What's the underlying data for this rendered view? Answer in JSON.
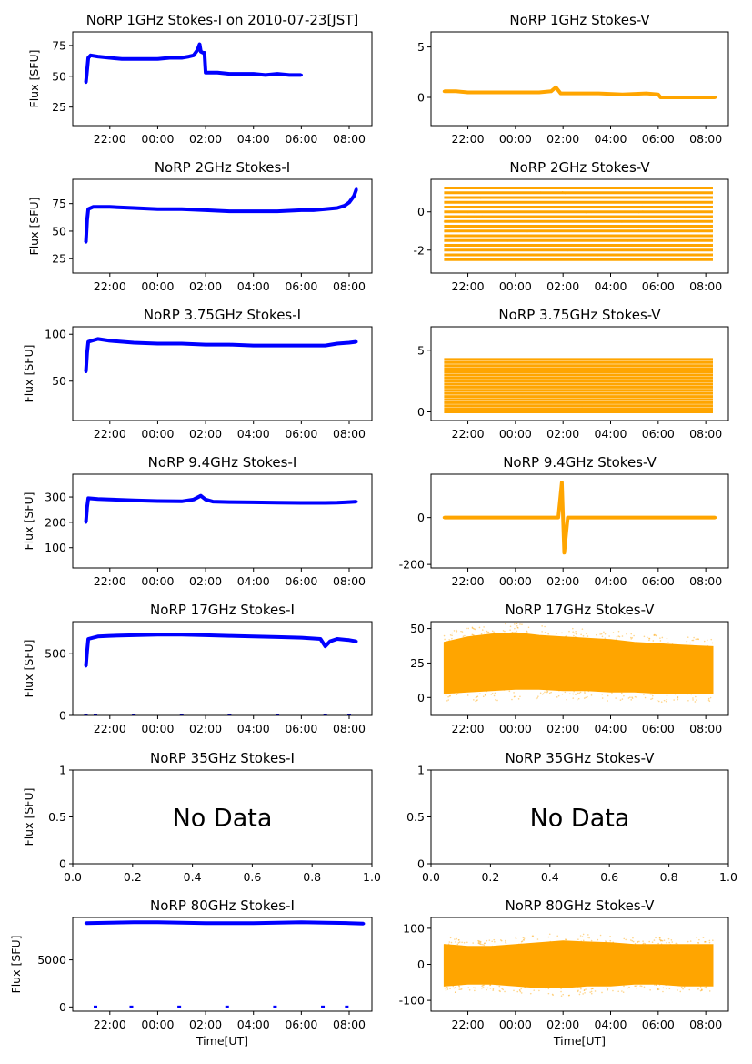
{
  "figure": {
    "time_label": "Time[UT]",
    "flux_label": "Flux [SFU]",
    "no_data_text": "No Data",
    "x_ticks": [
      "22:00",
      "00:00",
      "02:00",
      "04:00",
      "06:00",
      "08:00"
    ],
    "x_tick_hours": [
      22,
      24,
      26,
      28,
      30,
      32
    ],
    "colors": {
      "stokes_i": "#0000ff",
      "stokes_v": "#ffa500"
    }
  },
  "chart_data": [
    {
      "type": "scatter",
      "title": "NoRP 1GHz Stokes-I on 2010-07-23[JST]",
      "ylabel": "Flux [SFU]",
      "xlabel": "",
      "xlim": [
        20.45,
        32.95
      ],
      "ylim": [
        10,
        86
      ],
      "y_ticks": [
        25,
        50,
        75
      ],
      "x_ticks": [
        "22:00",
        "00:00",
        "02:00",
        "04:00",
        "06:00",
        "08:00"
      ],
      "series_color": "#0000ff",
      "series": [
        {
          "x": [
            21.0,
            21.05,
            21.1,
            21.2,
            21.5,
            22.0,
            22.5,
            23.0,
            23.5,
            24.0,
            24.5,
            25.0,
            25.3,
            25.5,
            25.65,
            25.75,
            25.8,
            25.9,
            25.95,
            26.0,
            26.1,
            26.5,
            27.0,
            27.5,
            28.0,
            28.5,
            29.0,
            29.5,
            30.0
          ],
          "y": [
            45,
            55,
            65,
            67,
            66,
            65,
            64,
            64,
            64,
            64,
            65,
            65,
            66,
            67,
            71,
            76,
            70,
            69,
            69,
            53,
            53,
            53,
            52,
            52,
            52,
            51,
            52,
            51,
            51
          ]
        }
      ]
    },
    {
      "type": "scatter",
      "title": "NoRP 1GHz Stokes-V",
      "ylabel": "",
      "xlabel": "",
      "xlim": [
        20.45,
        32.95
      ],
      "ylim": [
        -2.8,
        6.5
      ],
      "y_ticks": [
        0,
        5
      ],
      "x_ticks": [
        "22:00",
        "00:00",
        "02:00",
        "04:00",
        "06:00",
        "08:00"
      ],
      "series_color": "#ffa500",
      "series": [
        {
          "x": [
            21.0,
            21.5,
            22.0,
            23.0,
            24.0,
            25.0,
            25.5,
            25.7,
            25.9,
            26.5,
            27.5,
            28.5,
            29.5,
            30.0,
            30.1,
            31.0,
            32.0,
            32.4
          ],
          "y": [
            0.6,
            0.6,
            0.5,
            0.5,
            0.5,
            0.5,
            0.6,
            1.0,
            0.4,
            0.4,
            0.4,
            0.3,
            0.4,
            0.3,
            0.0,
            0.0,
            0.0,
            0.0
          ]
        }
      ]
    },
    {
      "type": "scatter",
      "title": "NoRP 2GHz Stokes-I",
      "ylabel": "Flux [SFU]",
      "xlabel": "",
      "xlim": [
        20.45,
        32.95
      ],
      "ylim": [
        12,
        97
      ],
      "y_ticks": [
        25,
        50,
        75
      ],
      "x_ticks": [
        "22:00",
        "00:00",
        "02:00",
        "04:00",
        "06:00",
        "08:00"
      ],
      "series_color": "#0000ff",
      "series": [
        {
          "x": [
            21.0,
            21.05,
            21.1,
            21.3,
            22.0,
            23.0,
            24.0,
            25.0,
            26.0,
            27.0,
            28.0,
            29.0,
            30.0,
            30.5,
            31.0,
            31.5,
            31.8,
            32.0,
            32.2,
            32.3
          ],
          "y": [
            40,
            60,
            70,
            72,
            72,
            71,
            70,
            70,
            69,
            68,
            68,
            68,
            69,
            69,
            70,
            71,
            73,
            76,
            82,
            88
          ]
        }
      ]
    },
    {
      "type": "scatter",
      "title": "NoRP 2GHz Stokes-V",
      "ylabel": "",
      "xlabel": "",
      "xlim": [
        20.45,
        32.95
      ],
      "ylim": [
        -3.2,
        1.7
      ],
      "y_ticks": [
        -2,
        0
      ],
      "x_ticks": [
        "22:00",
        "00:00",
        "02:00",
        "04:00",
        "06:00",
        "08:00"
      ],
      "series_color": "#ffa500",
      "levels": [
        1.25,
        1.0,
        0.75,
        0.5,
        0.25,
        0.0,
        -0.25,
        -0.5,
        -0.75,
        -1.0,
        -1.25,
        -1.5,
        -1.75,
        -2.0,
        -2.25,
        -2.5
      ],
      "x_range": [
        21.0,
        32.3
      ]
    },
    {
      "type": "scatter",
      "title": "NoRP 3.75GHz Stokes-I",
      "ylabel": "Flux [SFU]",
      "xlabel": "",
      "xlim": [
        20.45,
        32.95
      ],
      "ylim": [
        8,
        108
      ],
      "y_ticks": [
        50,
        100
      ],
      "x_ticks": [
        "22:00",
        "00:00",
        "02:00",
        "04:00",
        "06:00",
        "08:00"
      ],
      "series_color": "#0000ff",
      "series": [
        {
          "x": [
            21.0,
            21.05,
            21.1,
            21.5,
            22.0,
            23.0,
            24.0,
            25.0,
            26.0,
            27.0,
            28.0,
            29.0,
            30.0,
            31.0,
            31.5,
            32.0,
            32.3
          ],
          "y": [
            60,
            80,
            92,
            95,
            93,
            91,
            90,
            90,
            89,
            89,
            88,
            88,
            88,
            88,
            90,
            91,
            92
          ]
        }
      ]
    },
    {
      "type": "scatter",
      "title": "NoRP 3.75GHz Stokes-V",
      "ylabel": "",
      "xlabel": "",
      "xlim": [
        20.45,
        32.95
      ],
      "ylim": [
        -0.7,
        6.9
      ],
      "y_ticks": [
        0,
        5
      ],
      "x_ticks": [
        "22:00",
        "00:00",
        "02:00",
        "04:00",
        "06:00",
        "08:00"
      ],
      "series_color": "#ffa500",
      "levels": [
        4.25,
        4.0,
        3.75,
        3.5,
        3.25,
        3.0,
        2.75,
        2.5,
        2.25,
        2.0,
        1.75,
        1.5,
        1.25,
        1.0,
        0.75,
        0.5,
        0.25,
        0.0
      ],
      "x_range": [
        21.0,
        32.3
      ]
    },
    {
      "type": "scatter",
      "title": "NoRP 9.4GHz Stokes-I",
      "ylabel": "Flux [SFU]",
      "xlabel": "",
      "xlim": [
        20.45,
        32.95
      ],
      "ylim": [
        20,
        390
      ],
      "y_ticks": [
        100,
        200,
        300
      ],
      "x_ticks": [
        "22:00",
        "00:00",
        "02:00",
        "04:00",
        "06:00",
        "08:00"
      ],
      "series_color": "#0000ff",
      "series": [
        {
          "x": [
            21.0,
            21.05,
            21.1,
            21.5,
            22.0,
            23.0,
            24.0,
            25.0,
            25.5,
            25.8,
            26.0,
            26.3,
            27.0,
            28.0,
            29.0,
            30.0,
            31.0,
            31.5,
            32.0,
            32.3
          ],
          "y": [
            200,
            260,
            295,
            292,
            290,
            287,
            284,
            283,
            290,
            305,
            290,
            282,
            280,
            279,
            278,
            277,
            277,
            278,
            280,
            282
          ]
        }
      ]
    },
    {
      "type": "scatter",
      "title": "NoRP 9.4GHz Stokes-V",
      "ylabel": "",
      "xlabel": "",
      "xlim": [
        20.45,
        32.95
      ],
      "ylim": [
        -215,
        185
      ],
      "y_ticks": [
        -200,
        0
      ],
      "x_ticks": [
        "22:00",
        "00:00",
        "02:00",
        "04:00",
        "06:00",
        "08:00"
      ],
      "series_color": "#ffa500",
      "series": [
        {
          "x": [
            21.0,
            23.0,
            25.0,
            25.8,
            25.95,
            26.05,
            26.2,
            28.0,
            30.0,
            32.0,
            32.4
          ],
          "y": [
            0,
            0,
            0,
            0,
            150,
            -150,
            0,
            0,
            0,
            0,
            0
          ]
        }
      ]
    },
    {
      "type": "scatter",
      "title": "NoRP 17GHz Stokes-I",
      "ylabel": "Flux [SFU]",
      "xlabel": "",
      "xlim": [
        20.45,
        32.95
      ],
      "ylim": [
        0,
        760
      ],
      "y_ticks": [
        0,
        500
      ],
      "x_ticks": [
        "22:00",
        "00:00",
        "02:00",
        "04:00",
        "06:00",
        "08:00"
      ],
      "series_color": "#0000ff",
      "series": [
        {
          "x": [
            21.0,
            21.05,
            21.1,
            21.5,
            22.0,
            23.0,
            24.0,
            25.0,
            26.0,
            27.0,
            28.0,
            29.0,
            30.0,
            30.8,
            31.0,
            31.2,
            31.5,
            32.0,
            32.3
          ],
          "y": [
            400,
            520,
            620,
            640,
            645,
            650,
            655,
            655,
            650,
            645,
            640,
            635,
            630,
            620,
            560,
            600,
            620,
            610,
            600
          ]
        }
      ],
      "dropouts_x": [
        21.0,
        21.4,
        23.0,
        25.0,
        27.0,
        29.0,
        31.0,
        32.0
      ]
    },
    {
      "type": "scatter",
      "title": "NoRP 17GHz Stokes-V",
      "ylabel": "",
      "xlabel": "",
      "xlim": [
        20.45,
        32.95
      ],
      "ylim": [
        -13,
        55
      ],
      "y_ticks": [
        0,
        25,
        50
      ],
      "x_ticks": [
        "22:00",
        "00:00",
        "02:00",
        "04:00",
        "06:00",
        "08:00"
      ],
      "series_color": "#ffa500",
      "band": {
        "x": [
          21.0,
          22.0,
          23.0,
          24.0,
          25.0,
          26.0,
          27.0,
          28.0,
          29.0,
          30.0,
          31.0,
          32.3
        ],
        "upper": [
          40,
          44,
          46,
          47,
          45,
          44,
          43,
          42,
          40,
          39,
          38,
          37
        ],
        "lower": [
          3,
          4,
          5,
          6,
          6,
          5,
          5,
          4,
          4,
          3,
          3,
          3
        ]
      }
    },
    {
      "type": "scatter",
      "title": "NoRP 35GHz Stokes-I",
      "ylabel": "Flux [SFU]",
      "xlabel": "",
      "xlim": [
        0,
        1
      ],
      "ylim": [
        0,
        1
      ],
      "y_ticks": [
        0.0,
        0.5,
        1.0
      ],
      "x_ticks": [
        "0.0",
        "0.2",
        "0.4",
        "0.6",
        "0.8",
        "1.0"
      ],
      "no_data": true
    },
    {
      "type": "scatter",
      "title": "NoRP 35GHz Stokes-V",
      "ylabel": "",
      "xlabel": "",
      "xlim": [
        0,
        1
      ],
      "ylim": [
        0,
        1
      ],
      "y_ticks": [
        0.0,
        0.5,
        1.0
      ],
      "x_ticks": [
        "0.0",
        "0.2",
        "0.4",
        "0.6",
        "0.8",
        "1.0"
      ],
      "no_data": true
    },
    {
      "type": "scatter",
      "title": "NoRP 80GHz Stokes-I",
      "ylabel": "Flux [SFU]",
      "xlabel": "Time[UT]",
      "xlim": [
        20.45,
        32.95
      ],
      "ylim": [
        -450,
        9500
      ],
      "y_ticks": [
        0,
        5000
      ],
      "x_ticks": [
        "22:00",
        "00:00",
        "02:00",
        "04:00",
        "06:00",
        "08:00"
      ],
      "series_color": "#0000ff",
      "series": [
        {
          "x": [
            21.0,
            22.0,
            23.0,
            24.0,
            25.0,
            26.0,
            27.0,
            28.0,
            29.0,
            30.0,
            31.0,
            32.0,
            32.6
          ],
          "y": [
            8900,
            8950,
            9000,
            9000,
            8950,
            8900,
            8900,
            8900,
            8950,
            9000,
            8950,
            8900,
            8850
          ]
        }
      ],
      "dropouts_x": [
        21.4,
        22.9,
        24.9,
        26.9,
        28.9,
        30.9,
        31.9
      ]
    },
    {
      "type": "scatter",
      "title": "NoRP 80GHz Stokes-V",
      "ylabel": "",
      "xlabel": "Time[UT]",
      "xlim": [
        20.45,
        32.95
      ],
      "ylim": [
        -130,
        130
      ],
      "y_ticks": [
        -100,
        0,
        100
      ],
      "x_ticks": [
        "22:00",
        "00:00",
        "02:00",
        "04:00",
        "06:00",
        "08:00"
      ],
      "series_color": "#ffa500",
      "band": {
        "x": [
          21.0,
          22.0,
          23.0,
          24.0,
          25.0,
          26.0,
          27.0,
          28.0,
          29.0,
          30.0,
          31.0,
          32.3
        ],
        "upper": [
          55,
          50,
          50,
          55,
          60,
          65,
          62,
          60,
          55,
          55,
          55,
          55
        ],
        "lower": [
          -60,
          -55,
          -55,
          -60,
          -65,
          -65,
          -60,
          -60,
          -55,
          -55,
          -60,
          -60
        ]
      }
    }
  ]
}
